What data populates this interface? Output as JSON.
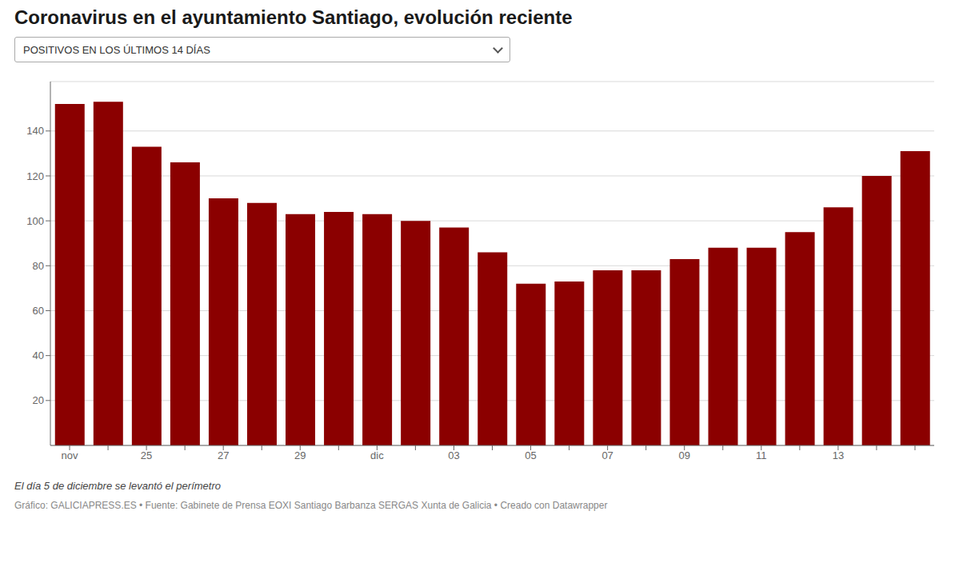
{
  "chart_data": {
    "type": "bar",
    "title": "Coronavirus en el ayuntamiento Santiago, evolución reciente",
    "subtitle": "POSITIVOS EN LOS ÚLTIMOS 14 DÍAS",
    "categories": [
      "nov",
      null,
      "25",
      null,
      "27",
      null,
      "29",
      null,
      "dic",
      null,
      "03",
      null,
      "05",
      null,
      "07",
      null,
      "09",
      null,
      "11",
      null,
      "13",
      null,
      null
    ],
    "values": [
      152,
      153,
      133,
      126,
      110,
      108,
      103,
      104,
      103,
      100,
      97,
      86,
      72,
      73,
      78,
      78,
      83,
      88,
      88,
      95,
      106,
      120,
      131
    ],
    "color": "#8B0000",
    "ylim": [
      0,
      162
    ],
    "yticks": [
      20,
      40,
      60,
      80,
      100,
      120,
      140
    ],
    "grid": true,
    "annotations": [
      "El día 5 de diciembre se levantó el perímetro",
      "Gráfico: GALICIAPRESS.ES • Fuente: Gabinete de Prensa EOXI Santiago Barbanza SERGAS Xunta de Galicia • Creado con Datawrapper"
    ]
  }
}
